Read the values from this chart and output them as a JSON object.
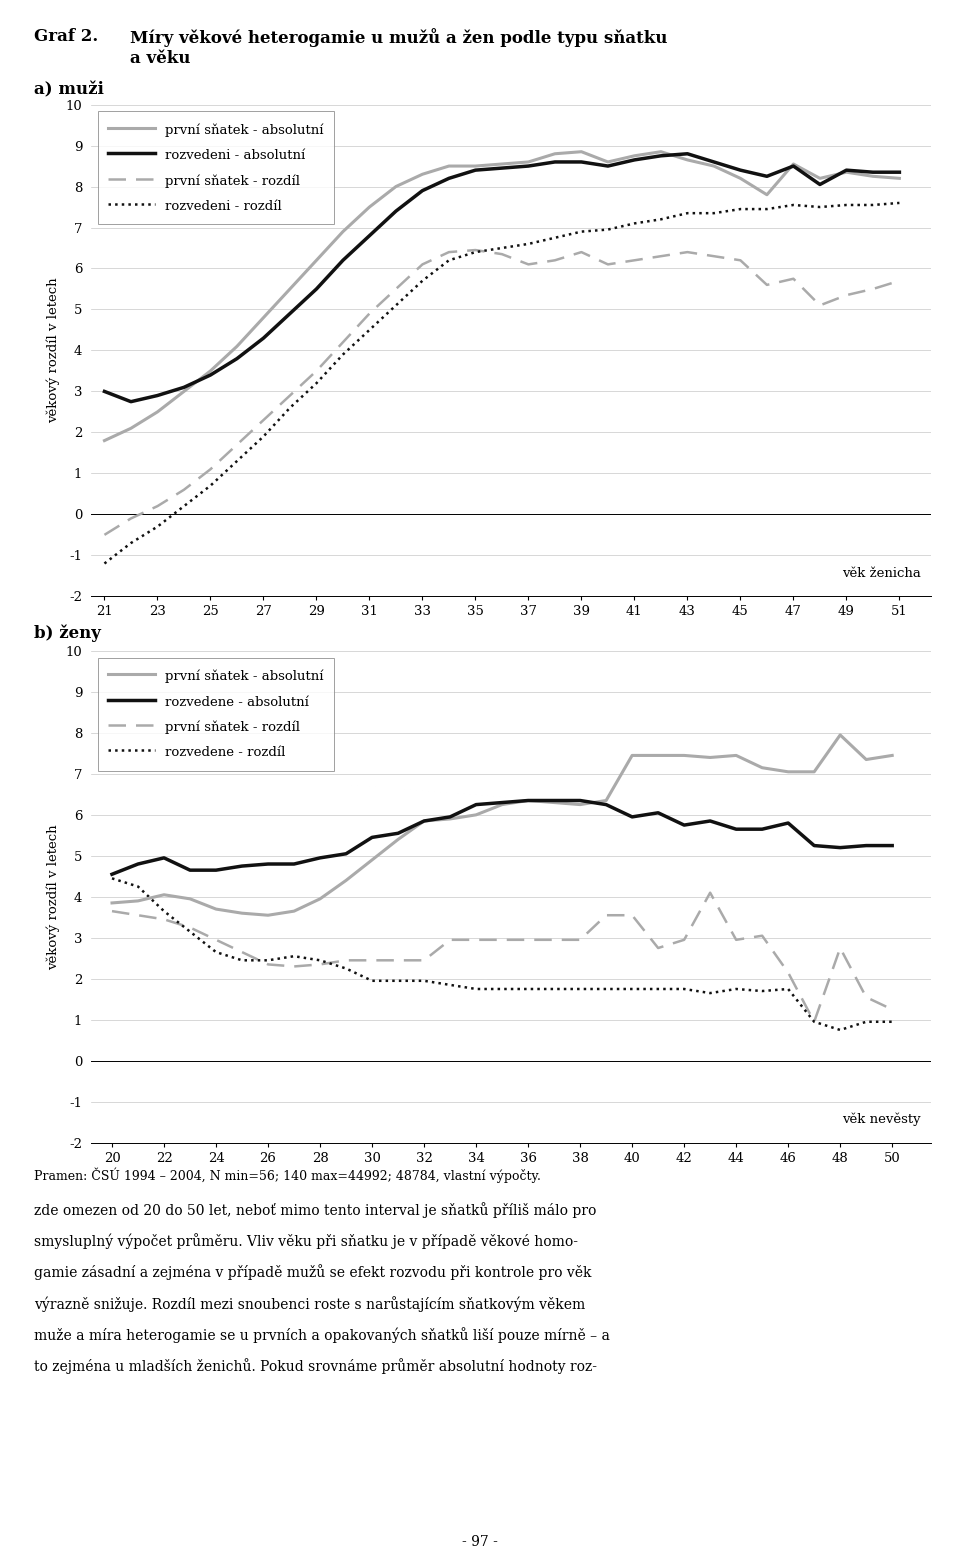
{
  "title_graf": "Graf 2.",
  "title_main": "Míry věkové heterogamie u mužů a žen podle typu sňatku a věku",
  "subtitle_a": "a) muži",
  "subtitle_b": "b) ženy",
  "xlabel_a": "věk ženicha",
  "xlabel_b": "věk nevěsty",
  "ylabel": "věkový rozdíl v letech",
  "footer": "Pramen: ČSÚ 1994 – 2004, N min=56; 140 max=44992; 48784, vlastní výpočty.",
  "men_x": [
    21,
    22,
    23,
    24,
    25,
    26,
    27,
    28,
    29,
    30,
    31,
    32,
    33,
    34,
    35,
    36,
    37,
    38,
    39,
    40,
    41,
    42,
    43,
    44,
    45,
    46,
    47,
    48,
    49,
    50,
    51
  ],
  "men_xticks": [
    21,
    23,
    25,
    27,
    29,
    31,
    33,
    35,
    37,
    39,
    41,
    43,
    45,
    47,
    49,
    51
  ],
  "men_prvni_abs": [
    1.8,
    2.1,
    2.5,
    3.0,
    3.5,
    4.1,
    4.8,
    5.5,
    6.2,
    6.9,
    7.5,
    8.0,
    8.3,
    8.5,
    8.5,
    8.55,
    8.6,
    8.8,
    8.85,
    8.6,
    8.75,
    8.85,
    8.65,
    8.5,
    8.2,
    7.8,
    8.55,
    8.2,
    8.35,
    8.25,
    8.2
  ],
  "men_rozvedeni_abs": [
    3.0,
    2.75,
    2.9,
    3.1,
    3.4,
    3.8,
    4.3,
    4.9,
    5.5,
    6.2,
    6.8,
    7.4,
    7.9,
    8.2,
    8.4,
    8.45,
    8.5,
    8.6,
    8.6,
    8.5,
    8.65,
    8.75,
    8.8,
    8.6,
    8.4,
    8.25,
    8.5,
    8.05,
    8.4,
    8.35,
    8.35
  ],
  "men_prvni_rozdil": [
    -0.5,
    -0.1,
    0.2,
    0.6,
    1.1,
    1.7,
    2.3,
    2.9,
    3.5,
    4.2,
    4.9,
    5.5,
    6.1,
    6.4,
    6.45,
    6.35,
    6.1,
    6.2,
    6.4,
    6.1,
    6.2,
    6.3,
    6.4,
    6.3,
    6.2,
    5.6,
    5.75,
    5.1,
    5.35,
    5.5,
    5.7
  ],
  "men_rozvedeni_rozdil": [
    -1.2,
    -0.7,
    -0.3,
    0.2,
    0.7,
    1.3,
    1.9,
    2.6,
    3.2,
    3.9,
    4.5,
    5.1,
    5.7,
    6.2,
    6.4,
    6.5,
    6.6,
    6.75,
    6.9,
    6.95,
    7.1,
    7.2,
    7.35,
    7.35,
    7.45,
    7.45,
    7.55,
    7.5,
    7.55,
    7.55,
    7.6
  ],
  "women_x": [
    20,
    21,
    22,
    23,
    24,
    25,
    26,
    27,
    28,
    29,
    30,
    31,
    32,
    33,
    34,
    35,
    36,
    37,
    38,
    39,
    40,
    41,
    42,
    43,
    44,
    45,
    46,
    47,
    48,
    49,
    50
  ],
  "women_xticks": [
    20,
    22,
    24,
    26,
    28,
    30,
    32,
    34,
    36,
    38,
    40,
    42,
    44,
    46,
    48,
    50
  ],
  "women_prvni_abs": [
    3.85,
    3.9,
    4.05,
    3.95,
    3.7,
    3.6,
    3.55,
    3.65,
    3.95,
    4.4,
    4.9,
    5.4,
    5.85,
    5.9,
    6.0,
    6.25,
    6.35,
    6.3,
    6.25,
    6.35,
    7.45,
    7.45,
    7.45,
    7.4,
    7.45,
    7.15,
    7.05,
    7.05,
    7.95,
    7.35,
    7.45
  ],
  "women_rozvedene_abs": [
    4.55,
    4.8,
    4.95,
    4.65,
    4.65,
    4.75,
    4.8,
    4.8,
    4.95,
    5.05,
    5.45,
    5.55,
    5.85,
    5.95,
    6.25,
    6.3,
    6.35,
    6.35,
    6.35,
    6.25,
    5.95,
    6.05,
    5.75,
    5.85,
    5.65,
    5.65,
    5.8,
    5.25,
    5.2,
    5.25,
    5.25
  ],
  "women_prvni_rozdil": [
    3.65,
    3.55,
    3.45,
    3.25,
    2.95,
    2.65,
    2.35,
    2.3,
    2.35,
    2.45,
    2.45,
    2.45,
    2.45,
    2.95,
    2.95,
    2.95,
    2.95,
    2.95,
    2.95,
    3.55,
    3.55,
    2.75,
    2.95,
    4.1,
    2.95,
    3.05,
    2.15,
    0.95,
    2.75,
    1.55,
    1.25
  ],
  "women_rozvedene_rozdil": [
    4.45,
    4.25,
    3.65,
    3.15,
    2.65,
    2.45,
    2.45,
    2.55,
    2.45,
    2.25,
    1.95,
    1.95,
    1.95,
    1.85,
    1.75,
    1.75,
    1.75,
    1.75,
    1.75,
    1.75,
    1.75,
    1.75,
    1.75,
    1.65,
    1.75,
    1.7,
    1.75,
    0.95,
    0.75,
    0.95,
    0.95
  ],
  "color_prvni_abs": "#aaaaaa",
  "color_rozvedeni_abs": "#111111",
  "color_prvni_rozdil": "#aaaaaa",
  "color_rozvedeni_rozdil": "#111111",
  "legend_a_0": "první sňatek - absolutní",
  "legend_a_1": "rozvedeni - absolutní",
  "legend_a_2": "první sňatek - rozdíl",
  "legend_a_3": "rozvedeni - rozdíl",
  "legend_b_0": "první sňatek - absolutní",
  "legend_b_1": "rozvedene - absolutní",
  "legend_b_2": "první sňatek - rozdíl",
  "legend_b_3": "rozvedene - rozdíl",
  "para1": "zde omezen od 20 do 50 let, neboť mimo tento interval je sňatků příliš málo pro",
  "para2": "smysluplný výpočet průměru. Vliv věku při sňatku je v případě věkové homo-",
  "para3": "gamie zásadní a zejména v případě mužů se efekt rozvodu při kontrole pro věk",
  "para4": "výrazně snižuje. Rozdíl mezi snoubenci roste s narůstajícím sňatkovým věkem",
  "para5": "muže a míra heterogamie se u prvních a opakovaných sňatků liší pouze mírně – a",
  "para6": "to zejména u mladších ženichů. Pokud srovnáme průměr absolutní hodnoty roz-",
  "pagenum": "- 97 -"
}
